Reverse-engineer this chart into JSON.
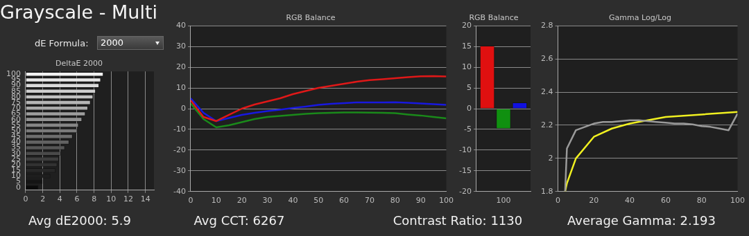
{
  "chart_data": [
    {
      "type": "bar",
      "orientation": "horizontal",
      "title": "DeltaE 2000",
      "annotations": [
        "Grayscale - Multi",
        "dE Formula:",
        "2000",
        "Avg dE2000: 5.9"
      ],
      "categories": [
        "100",
        "95",
        "90",
        "85",
        "80",
        "75",
        "70",
        "65",
        "60",
        "55",
        "50",
        "45",
        "40",
        "35",
        "30",
        "25",
        "20",
        "15",
        "10",
        "5",
        "0"
      ],
      "values": [
        9.1,
        8.8,
        8.6,
        8.2,
        7.9,
        7.6,
        7.3,
        7.0,
        6.6,
        6.2,
        6.0,
        5.5,
        5.1,
        4.6,
        4.1,
        3.9,
        3.7,
        3.5,
        2.9,
        2.0,
        1.5
      ],
      "colors": [
        "#f2f2f2",
        "#e6e6e6",
        "#dadada",
        "#cecece",
        "#c2c2c2",
        "#b6b6b6",
        "#aaaaaa",
        "#9e9e9e",
        "#929292",
        "#868686",
        "#7a7a7a",
        "#6e6e6e",
        "#626262",
        "#565656",
        "#4a4a4a",
        "#3e3e3e",
        "#323232",
        "#282828",
        "#1e1e1e",
        "#141414",
        "#0a0a0a"
      ],
      "xlim": [
        0,
        15
      ],
      "xticks": [
        0,
        2,
        4,
        6,
        8,
        10,
        12,
        14
      ],
      "grid": "x"
    },
    {
      "type": "line",
      "title": "RGB Balance",
      "annotations": [
        "Avg CCT: 6267"
      ],
      "x": [
        0,
        5,
        10,
        15,
        20,
        25,
        30,
        35,
        40,
        45,
        50,
        55,
        60,
        65,
        70,
        75,
        80,
        85,
        90,
        95,
        100
      ],
      "series": [
        {
          "color": "#e01818",
          "values": [
            4,
            -4,
            -6,
            -3,
            0,
            2,
            3.5,
            5,
            7,
            8.5,
            10,
            11,
            12,
            13,
            13.8,
            14.2,
            14.7,
            15.2,
            15.6,
            15.7,
            15.5
          ]
        },
        {
          "color": "#1a8a1a",
          "values": [
            2.5,
            -5,
            -9,
            -8,
            -6.5,
            -5,
            -4,
            -3.5,
            -3,
            -2.5,
            -2.2,
            -2,
            -1.8,
            -1.8,
            -1.9,
            -2,
            -2.2,
            -2.8,
            -3.3,
            -4,
            -4.7
          ]
        },
        {
          "color": "#1818e0",
          "values": [
            5,
            -2,
            -6,
            -4.5,
            -3,
            -2,
            -1.2,
            -0.5,
            0.3,
            1,
            1.8,
            2.3,
            2.7,
            3,
            3,
            3,
            3.1,
            2.8,
            2.5,
            2.2,
            1.8
          ]
        }
      ],
      "xlim": [
        0,
        100
      ],
      "xticks": [
        0,
        10,
        20,
        30,
        40,
        50,
        60,
        70,
        80,
        90,
        100
      ],
      "ylim": [
        -40,
        40
      ],
      "yticks": [
        -40,
        -30,
        -20,
        -10,
        0,
        10,
        20,
        30,
        40
      ],
      "grid": "y",
      "marker": "none"
    },
    {
      "type": "bar",
      "title": "RGB Balance",
      "annotations": [
        "Contrast Ratio: 1130"
      ],
      "categories": [
        "100"
      ],
      "series": [
        {
          "color": "#e01010",
          "values": [
            15.2
          ]
        },
        {
          "color": "#109010",
          "values": [
            -4.9
          ]
        },
        {
          "color": "#1010e0",
          "values": [
            1.5
          ]
        }
      ],
      "ylim": [
        -20,
        20
      ],
      "yticks": [
        -20,
        -15,
        -10,
        -5,
        0,
        5,
        10,
        15,
        20
      ],
      "grid": "y"
    },
    {
      "type": "line",
      "title": "Gamma Log/Log",
      "annotations": [
        "Average Gamma: 2.193"
      ],
      "series": [
        {
          "color": "#9a9a9a",
          "x": [
            4,
            5,
            10,
            15,
            20,
            25,
            30,
            35,
            40,
            45,
            50,
            55,
            60,
            65,
            70,
            75,
            80,
            85,
            90,
            95,
            100
          ],
          "values": [
            1.8,
            2.06,
            2.17,
            2.19,
            2.21,
            2.22,
            2.22,
            2.225,
            2.23,
            2.23,
            2.225,
            2.22,
            2.215,
            2.21,
            2.21,
            2.205,
            2.195,
            2.19,
            2.18,
            2.17,
            2.27
          ]
        },
        {
          "color": "#f0f020",
          "x": [
            4,
            5,
            10,
            20,
            30,
            40,
            60,
            80,
            100
          ],
          "values": [
            1.8,
            1.85,
            2.0,
            2.13,
            2.18,
            2.21,
            2.25,
            2.265,
            2.28
          ]
        }
      ],
      "xlim": [
        0,
        100
      ],
      "xticks": [
        0,
        20,
        40,
        60,
        80,
        100
      ],
      "ylim": [
        1.8,
        2.8
      ],
      "yticks": [
        1.8,
        2,
        2.2,
        2.4,
        2.6,
        2.8
      ],
      "grid": "y",
      "marker": "none"
    }
  ]
}
